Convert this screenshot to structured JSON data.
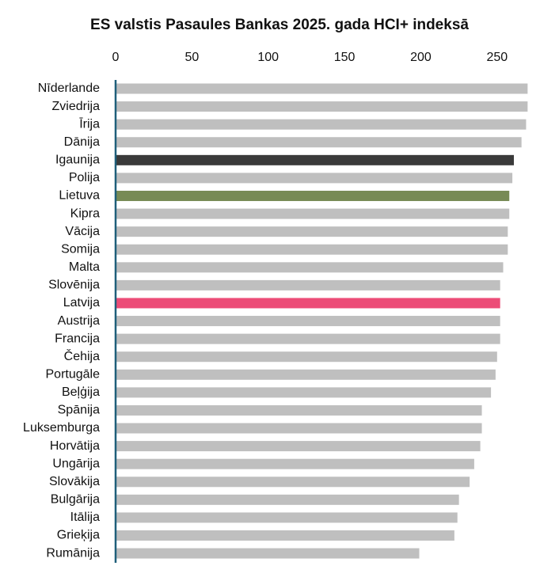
{
  "chart_data": {
    "type": "barh",
    "title": "ES valstis Pasaules Bankas 2025. gada HCI+ indeksā",
    "categories": [
      "Nīderlande",
      "Zviedrija",
      "Īrija",
      "Dānija",
      "Igaunija",
      "Polija",
      "Lietuva",
      "Kipra",
      "Vācija",
      "Somija",
      "Malta",
      "Slovēnija",
      "Latvija",
      "Austrija",
      "Francija",
      "Čehija",
      "Portugāle",
      "Beļģija",
      "Spānija",
      "Luksemburga",
      "Horvātija",
      "Ungārija",
      "Slovākija",
      "Bulgārija",
      "Itālija",
      "Grieķija",
      "Rumānija"
    ],
    "values": [
      270,
      270,
      269,
      266,
      261,
      260,
      258,
      258,
      257,
      257,
      254,
      252,
      252,
      252,
      252,
      250,
      249,
      246,
      240,
      240,
      239,
      235,
      232,
      225,
      224,
      222,
      199
    ],
    "colors": [
      "#bfbfbf",
      "#bfbfbf",
      "#bfbfbf",
      "#bfbfbf",
      "#3a3a3a",
      "#bfbfbf",
      "#778a55",
      "#bfbfbf",
      "#bfbfbf",
      "#bfbfbf",
      "#bfbfbf",
      "#bfbfbf",
      "#ec4c77",
      "#bfbfbf",
      "#bfbfbf",
      "#bfbfbf",
      "#bfbfbf",
      "#bfbfbf",
      "#bfbfbf",
      "#bfbfbf",
      "#bfbfbf",
      "#bfbfbf",
      "#bfbfbf",
      "#bfbfbf",
      "#bfbfbf",
      "#bfbfbf",
      "#bfbfbf"
    ],
    "xlim": [
      0,
      275
    ],
    "xticks": [
      0,
      50,
      100,
      150,
      200,
      250
    ],
    "grid": false
  }
}
